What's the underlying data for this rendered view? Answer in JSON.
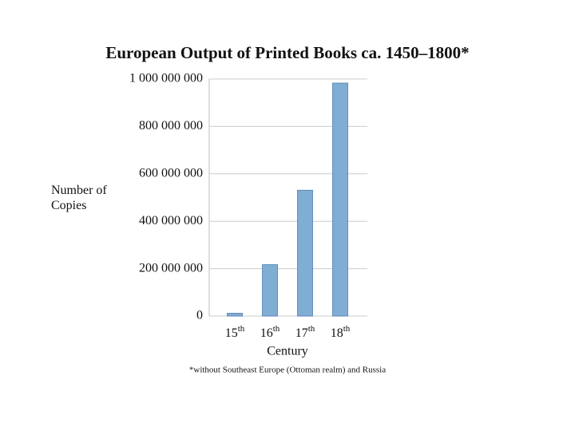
{
  "chart_data": {
    "type": "bar",
    "title": "European Output of Printed Books ca. 1450–1800*",
    "y_label": "Number of Copies",
    "x_label": "Century",
    "footnote": "*without Southeast Europe (Ottoman realm) and Russia",
    "categories": [
      "15th",
      "16th",
      "17th",
      "18th"
    ],
    "values": [
      12000000,
      217000000,
      531000000,
      983000000
    ],
    "color": "#7fadd4",
    "ylim": [
      0,
      1000000000
    ],
    "yticks": [
      0,
      {
        "value": 200000000,
        "label": "200 000 000"
      },
      {
        "value": 400000000,
        "label": "400 000 000"
      },
      {
        "value": 600000000,
        "label": "600 000 000"
      },
      {
        "value": 800000000,
        "label": "800 000 000"
      },
      {
        "value": 1000000000,
        "label": "1 000 000 000"
      }
    ],
    "grid": true
  }
}
